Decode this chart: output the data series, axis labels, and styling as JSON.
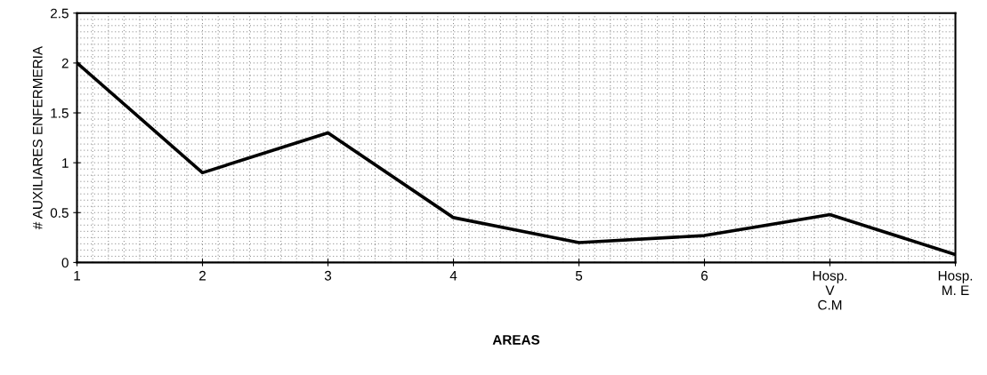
{
  "chart_data": {
    "type": "line",
    "xlabel": "AREAS",
    "ylabel": "# AUXILIARES ENFERMERIA",
    "categories": [
      "1",
      "2",
      "3",
      "4",
      "5",
      "6",
      "Hosp.\nV\nC.M",
      "Hosp.\nM. E"
    ],
    "series": [
      {
        "color": "#000000",
        "values": [
          2,
          0.9,
          1.3,
          0.45,
          0.2,
          0.27,
          0.48,
          0.08
        ]
      }
    ],
    "ylim": [
      0,
      2.5
    ],
    "yticks": [
      0,
      0.5,
      1,
      1.5,
      2,
      2.5
    ],
    "grid": true,
    "marker": "none",
    "line_style": "solid"
  }
}
